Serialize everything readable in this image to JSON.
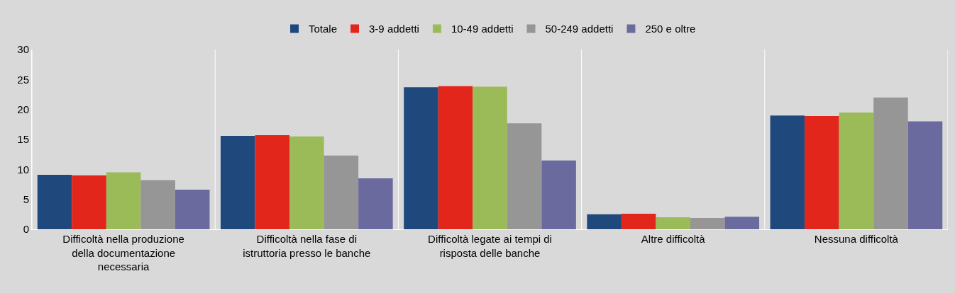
{
  "chart_data": {
    "type": "bar",
    "categories": [
      "Difficoltà nella produzione della documentazione necessaria",
      "Difficoltà nella fase di istruttoria presso le banche",
      "Difficoltà legate ai tempi di risposta delle banche",
      "Altre difficoltà",
      "Nessuna difficoltà"
    ],
    "series": [
      {
        "name": "Totale",
        "color": "#1f497d",
        "values": [
          9.1,
          15.6,
          23.7,
          2.5,
          19.0
        ]
      },
      {
        "name": "3-9 addetti",
        "color": "#e3261b",
        "values": [
          9.0,
          15.7,
          23.9,
          2.6,
          18.9
        ]
      },
      {
        "name": "10-49 addetti",
        "color": "#9bbb59",
        "values": [
          9.5,
          15.5,
          23.8,
          2.0,
          19.5
        ]
      },
      {
        "name": "50-249 addetti",
        "color": "#969696",
        "values": [
          8.2,
          12.3,
          17.7,
          1.9,
          22.0
        ]
      },
      {
        "name": "250 e oltre",
        "color": "#6a6a9e",
        "values": [
          6.6,
          8.5,
          11.5,
          2.1,
          18.0
        ]
      }
    ],
    "ylim": [
      0,
      30
    ],
    "yticks": [
      0,
      5,
      10,
      15,
      20,
      25,
      30
    ],
    "grid": "x",
    "legend": "top"
  }
}
